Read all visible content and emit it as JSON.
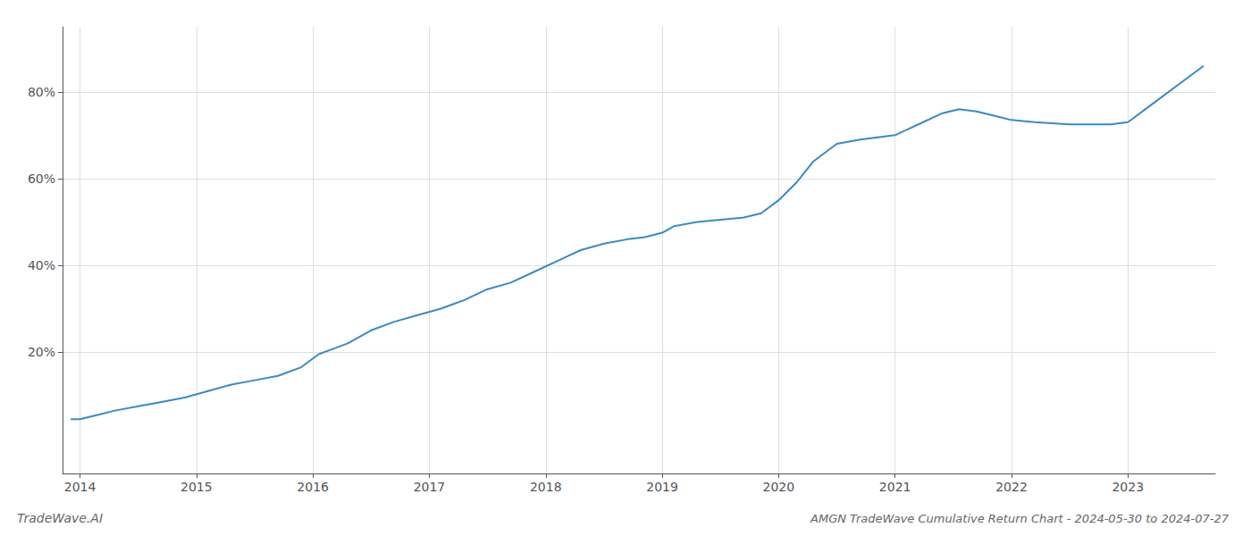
{
  "chart_data": {
    "type": "line",
    "title": "AMGN TradeWave Cumulative Return Chart - 2024-05-30 to 2024-07-27",
    "annotations": [
      "TradeWave.AI"
    ],
    "color": "#3a8bbf",
    "x": [
      2013.92,
      2014.0,
      2014.15,
      2014.3,
      2014.5,
      2014.7,
      2014.9,
      2015.1,
      2015.3,
      2015.5,
      2015.7,
      2015.9,
      2016.05,
      2016.15,
      2016.3,
      2016.5,
      2016.7,
      2016.9,
      2017.1,
      2017.3,
      2017.5,
      2017.7,
      2017.9,
      2018.1,
      2018.3,
      2018.5,
      2018.7,
      2018.85,
      2019.0,
      2019.1,
      2019.3,
      2019.5,
      2019.7,
      2019.85,
      2020.0,
      2020.15,
      2020.3,
      2020.5,
      2020.7,
      2020.85,
      2021.0,
      2021.2,
      2021.4,
      2021.55,
      2021.7,
      2021.85,
      2022.0,
      2022.2,
      2022.5,
      2022.7,
      2022.85,
      2023.0,
      2023.2,
      2023.5,
      2023.65
    ],
    "values": [
      4.5,
      4.5,
      5.5,
      6.5,
      7.5,
      8.5,
      9.5,
      11.0,
      12.5,
      13.5,
      14.5,
      16.5,
      19.5,
      20.5,
      22.0,
      25.0,
      27.0,
      28.5,
      30.0,
      32.0,
      34.5,
      36.0,
      38.5,
      41.0,
      43.5,
      45.0,
      46.0,
      46.5,
      47.5,
      49.0,
      50.0,
      50.5,
      51.0,
      52.0,
      55.0,
      59.0,
      64.0,
      68.0,
      69.0,
      69.5,
      70.0,
      72.5,
      75.0,
      76.0,
      75.5,
      74.5,
      73.5,
      73.0,
      72.5,
      72.5,
      72.5,
      73.0,
      77.0,
      83.0,
      86.0
    ],
    "xlim": [
      2013.85,
      2023.75
    ],
    "xticks": [
      2014,
      2015,
      2016,
      2017,
      2018,
      2019,
      2020,
      2021,
      2022,
      2023
    ],
    "ylim": [
      -8,
      95
    ],
    "yticks": [
      {
        "value": 20,
        "label": "20%"
      },
      {
        "value": 40,
        "label": "40%"
      },
      {
        "value": 60,
        "label": "60%"
      },
      {
        "value": 80,
        "label": "80%"
      }
    ],
    "grid": true
  }
}
